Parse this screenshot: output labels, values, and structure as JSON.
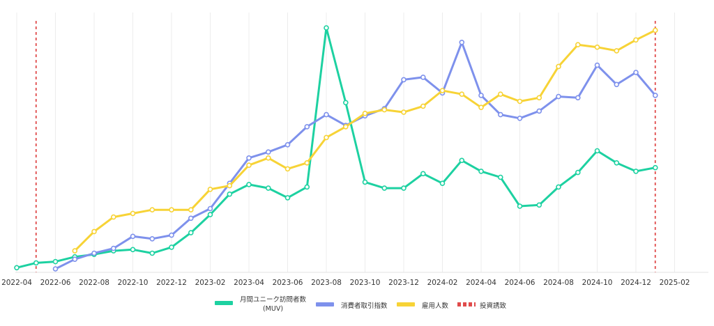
{
  "chart_data": {
    "type": "line",
    "x": [
      "2022-04",
      "2022-05",
      "2022-06",
      "2022-07",
      "2022-08",
      "2022-09",
      "2022-10",
      "2022-11",
      "2022-12",
      "2023-01",
      "2023-02",
      "2023-03",
      "2023-04",
      "2023-05",
      "2023-06",
      "2023-07",
      "2023-08",
      "2023-09",
      "2023-10",
      "2023-11",
      "2023-12",
      "2024-01",
      "2024-02",
      "2024-03",
      "2024-04",
      "2024-05",
      "2024-06",
      "2024-07",
      "2024-08",
      "2024-09",
      "2024-10",
      "2024-11",
      "2024-12",
      "2025-01"
    ],
    "x_ticks": [
      "2022-04",
      "2022-06",
      "2022-08",
      "2022-10",
      "2022-12",
      "2023-02",
      "2023-04",
      "2023-06",
      "2023-08",
      "2023-10",
      "2023-12",
      "2024-02",
      "2024-04",
      "2024-06",
      "2024-08",
      "2024-10",
      "2024-12",
      "2025-02"
    ],
    "ylim": [
      0,
      100
    ],
    "grid": "vertical",
    "legend_position": "bottom",
    "series": [
      {
        "name": "月間ユニーク訪問者数\n(MUV)",
        "color": "#1dd1a1",
        "values": [
          0.5,
          2.5,
          3,
          5,
          6,
          7.5,
          8,
          6.5,
          9,
          15,
          22.5,
          31,
          35,
          33.5,
          29.5,
          34,
          100,
          69,
          36,
          33.5,
          33.5,
          39.5,
          35.5,
          45,
          40.5,
          38,
          26,
          26.5,
          34,
          40,
          49,
          44,
          40.5,
          42
        ]
      },
      {
        "name": "消費者取引指数",
        "color": "#7e91ec",
        "values": [
          null,
          null,
          0,
          4,
          6.5,
          8.5,
          13.5,
          12.5,
          14,
          21,
          25,
          35.5,
          46,
          48.5,
          51.5,
          59,
          64,
          59.5,
          63.5,
          66.5,
          78.5,
          79.5,
          73,
          94,
          72,
          64,
          62.5,
          65.5,
          71.5,
          71,
          84.5,
          76.5,
          81.5,
          72
        ]
      },
      {
        "name": "雇用人数",
        "color": "#f7d336",
        "values": [
          null,
          null,
          null,
          7.5,
          15.5,
          21.5,
          23,
          24.5,
          24.5,
          24.5,
          33,
          34.5,
          43,
          46,
          41.5,
          44,
          54.5,
          59,
          64.5,
          66,
          65,
          67.5,
          74,
          72.5,
          67,
          72.5,
          69.5,
          71,
          84,
          93,
          92,
          90.5,
          95,
          99
        ]
      }
    ],
    "markers": {
      "name": "投資誘致",
      "color": "#e04b4b",
      "x": [
        "2022-05",
        "2025-01"
      ]
    }
  }
}
